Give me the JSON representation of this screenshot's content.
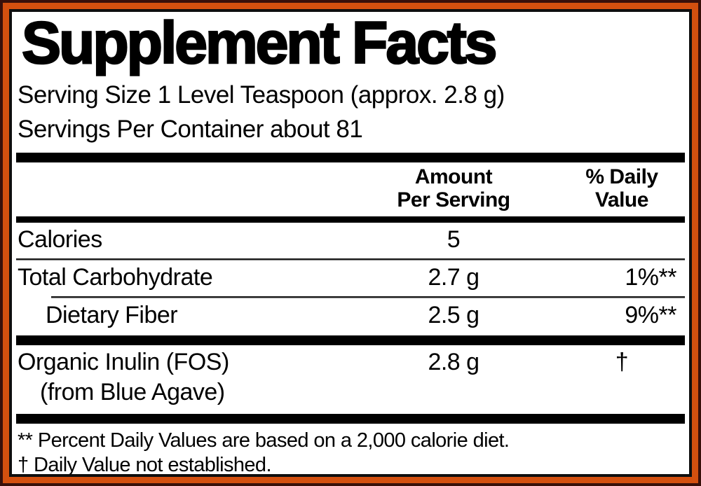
{
  "colors": {
    "border_outer": "#38100a",
    "border_orange": "#d4500f",
    "border_inner": "#0f0f0f",
    "text": "#000000",
    "background": "#ffffff"
  },
  "label": {
    "title": "Supplement Facts",
    "serving_size": "Serving Size 1 Level Teaspoon (approx. 2.8 g)",
    "servings_per_container": "Servings Per Container about 81",
    "columns": {
      "amount_line1": "Amount",
      "amount_line2": "Per Serving",
      "daily_value_line1": "% Daily",
      "daily_value_line2": "Value"
    },
    "rows": [
      {
        "name": "Calories",
        "amount": "5",
        "daily_value": ""
      },
      {
        "name": "Total Carbohydrate",
        "amount": "2.7 g",
        "daily_value": "1%**"
      },
      {
        "name": "Dietary Fiber",
        "amount": "2.5 g",
        "daily_value": "9%**"
      },
      {
        "name": "Organic Inulin (FOS)",
        "name_line2": "(from Blue Agave)",
        "amount": "2.8 g",
        "daily_value": "†"
      }
    ],
    "footnotes": [
      "** Percent Daily Values are based on a 2,000 calorie diet.",
      "† Daily Value not established."
    ]
  }
}
